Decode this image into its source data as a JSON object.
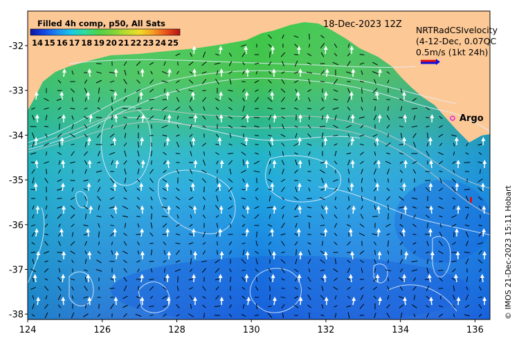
{
  "date_label": "18-Dec-2023 12Z",
  "legend": {
    "title": "Filled 4h comp, p50, All Sats",
    "ticks": [
      "14",
      "15",
      "16",
      "17",
      "18",
      "19",
      "20",
      "21",
      "22",
      "23",
      "24",
      "25"
    ],
    "colormap": [
      "#0a14a0",
      "#1446e6",
      "#1a8cf0",
      "#18c8e8",
      "#2edc9a",
      "#4ed24a",
      "#7cd23a",
      "#b8dc30",
      "#f0dc28",
      "#f5a022",
      "#e8501c",
      "#b41414"
    ]
  },
  "velocity_legend": {
    "line1": "NRTRadCSIvelocity",
    "line2": "(4-12-Dec, 0.07QC",
    "line3": "0.5m/s (1kt 24h)",
    "arrow_color_primary": "#e01010",
    "arrow_color_secondary": "#1010e0"
  },
  "argo_label": "Argo",
  "credit": "© IMOS 21-Dec-2023 15:11 Hobart",
  "x_ticks": [
    "124",
    "126",
    "128",
    "130",
    "132",
    "134",
    "136"
  ],
  "y_ticks": [
    "-32",
    "-33",
    "-34",
    "-35",
    "-36",
    "-37",
    "-38"
  ],
  "colors": {
    "land": "#fcc896",
    "ocean_green": "#40c050",
    "ocean_cyan": "#20b0d8",
    "ocean_blue": "#1878e0",
    "ocean_deep": "#1858dc",
    "contour": "#e6f0ff",
    "argo": "#e020e0"
  }
}
